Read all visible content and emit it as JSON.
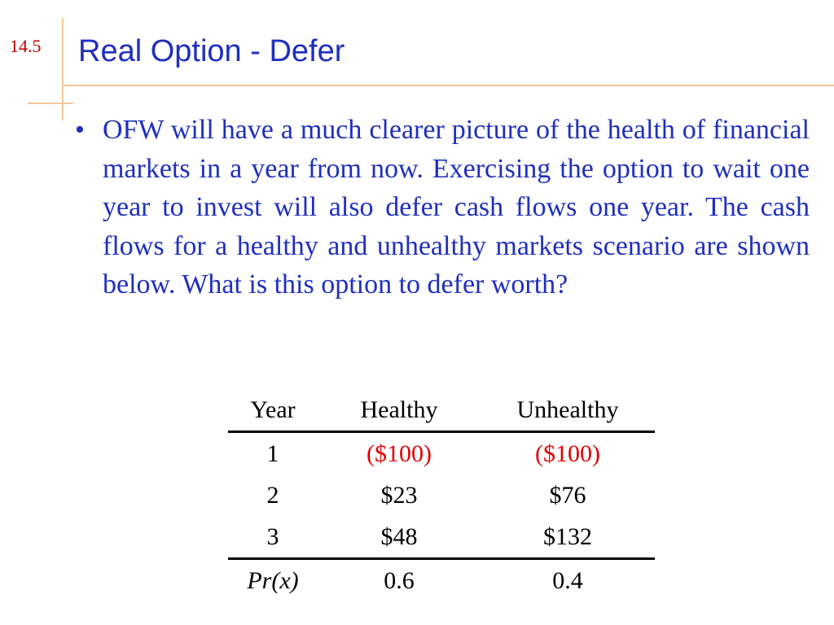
{
  "slide_number": "14.5",
  "title": "Real Option - Defer",
  "bullet": "OFW will have a much clearer picture of the health of financial markets in a year from now. Exercising the option to wait one year to invest will also defer cash flows one year.  The cash flows for a healthy and unhealthy markets scenario are shown below.  What is this option to defer worth?",
  "bullet_marker": "•",
  "table": {
    "headers": [
      "Year",
      "Healthy",
      "Unhealthy"
    ],
    "rows": [
      [
        "1",
        "($100)",
        "($100)"
      ],
      [
        "2",
        "$23",
        "$76"
      ],
      [
        "3",
        "$48",
        "$132"
      ]
    ],
    "footer": [
      "Pr(x)",
      "0.6",
      "0.4"
    ]
  },
  "colors": {
    "title": "#1f2fbd",
    "slide_number": "#c00000",
    "negative": "#e00000",
    "rules": "#f6c89b"
  }
}
